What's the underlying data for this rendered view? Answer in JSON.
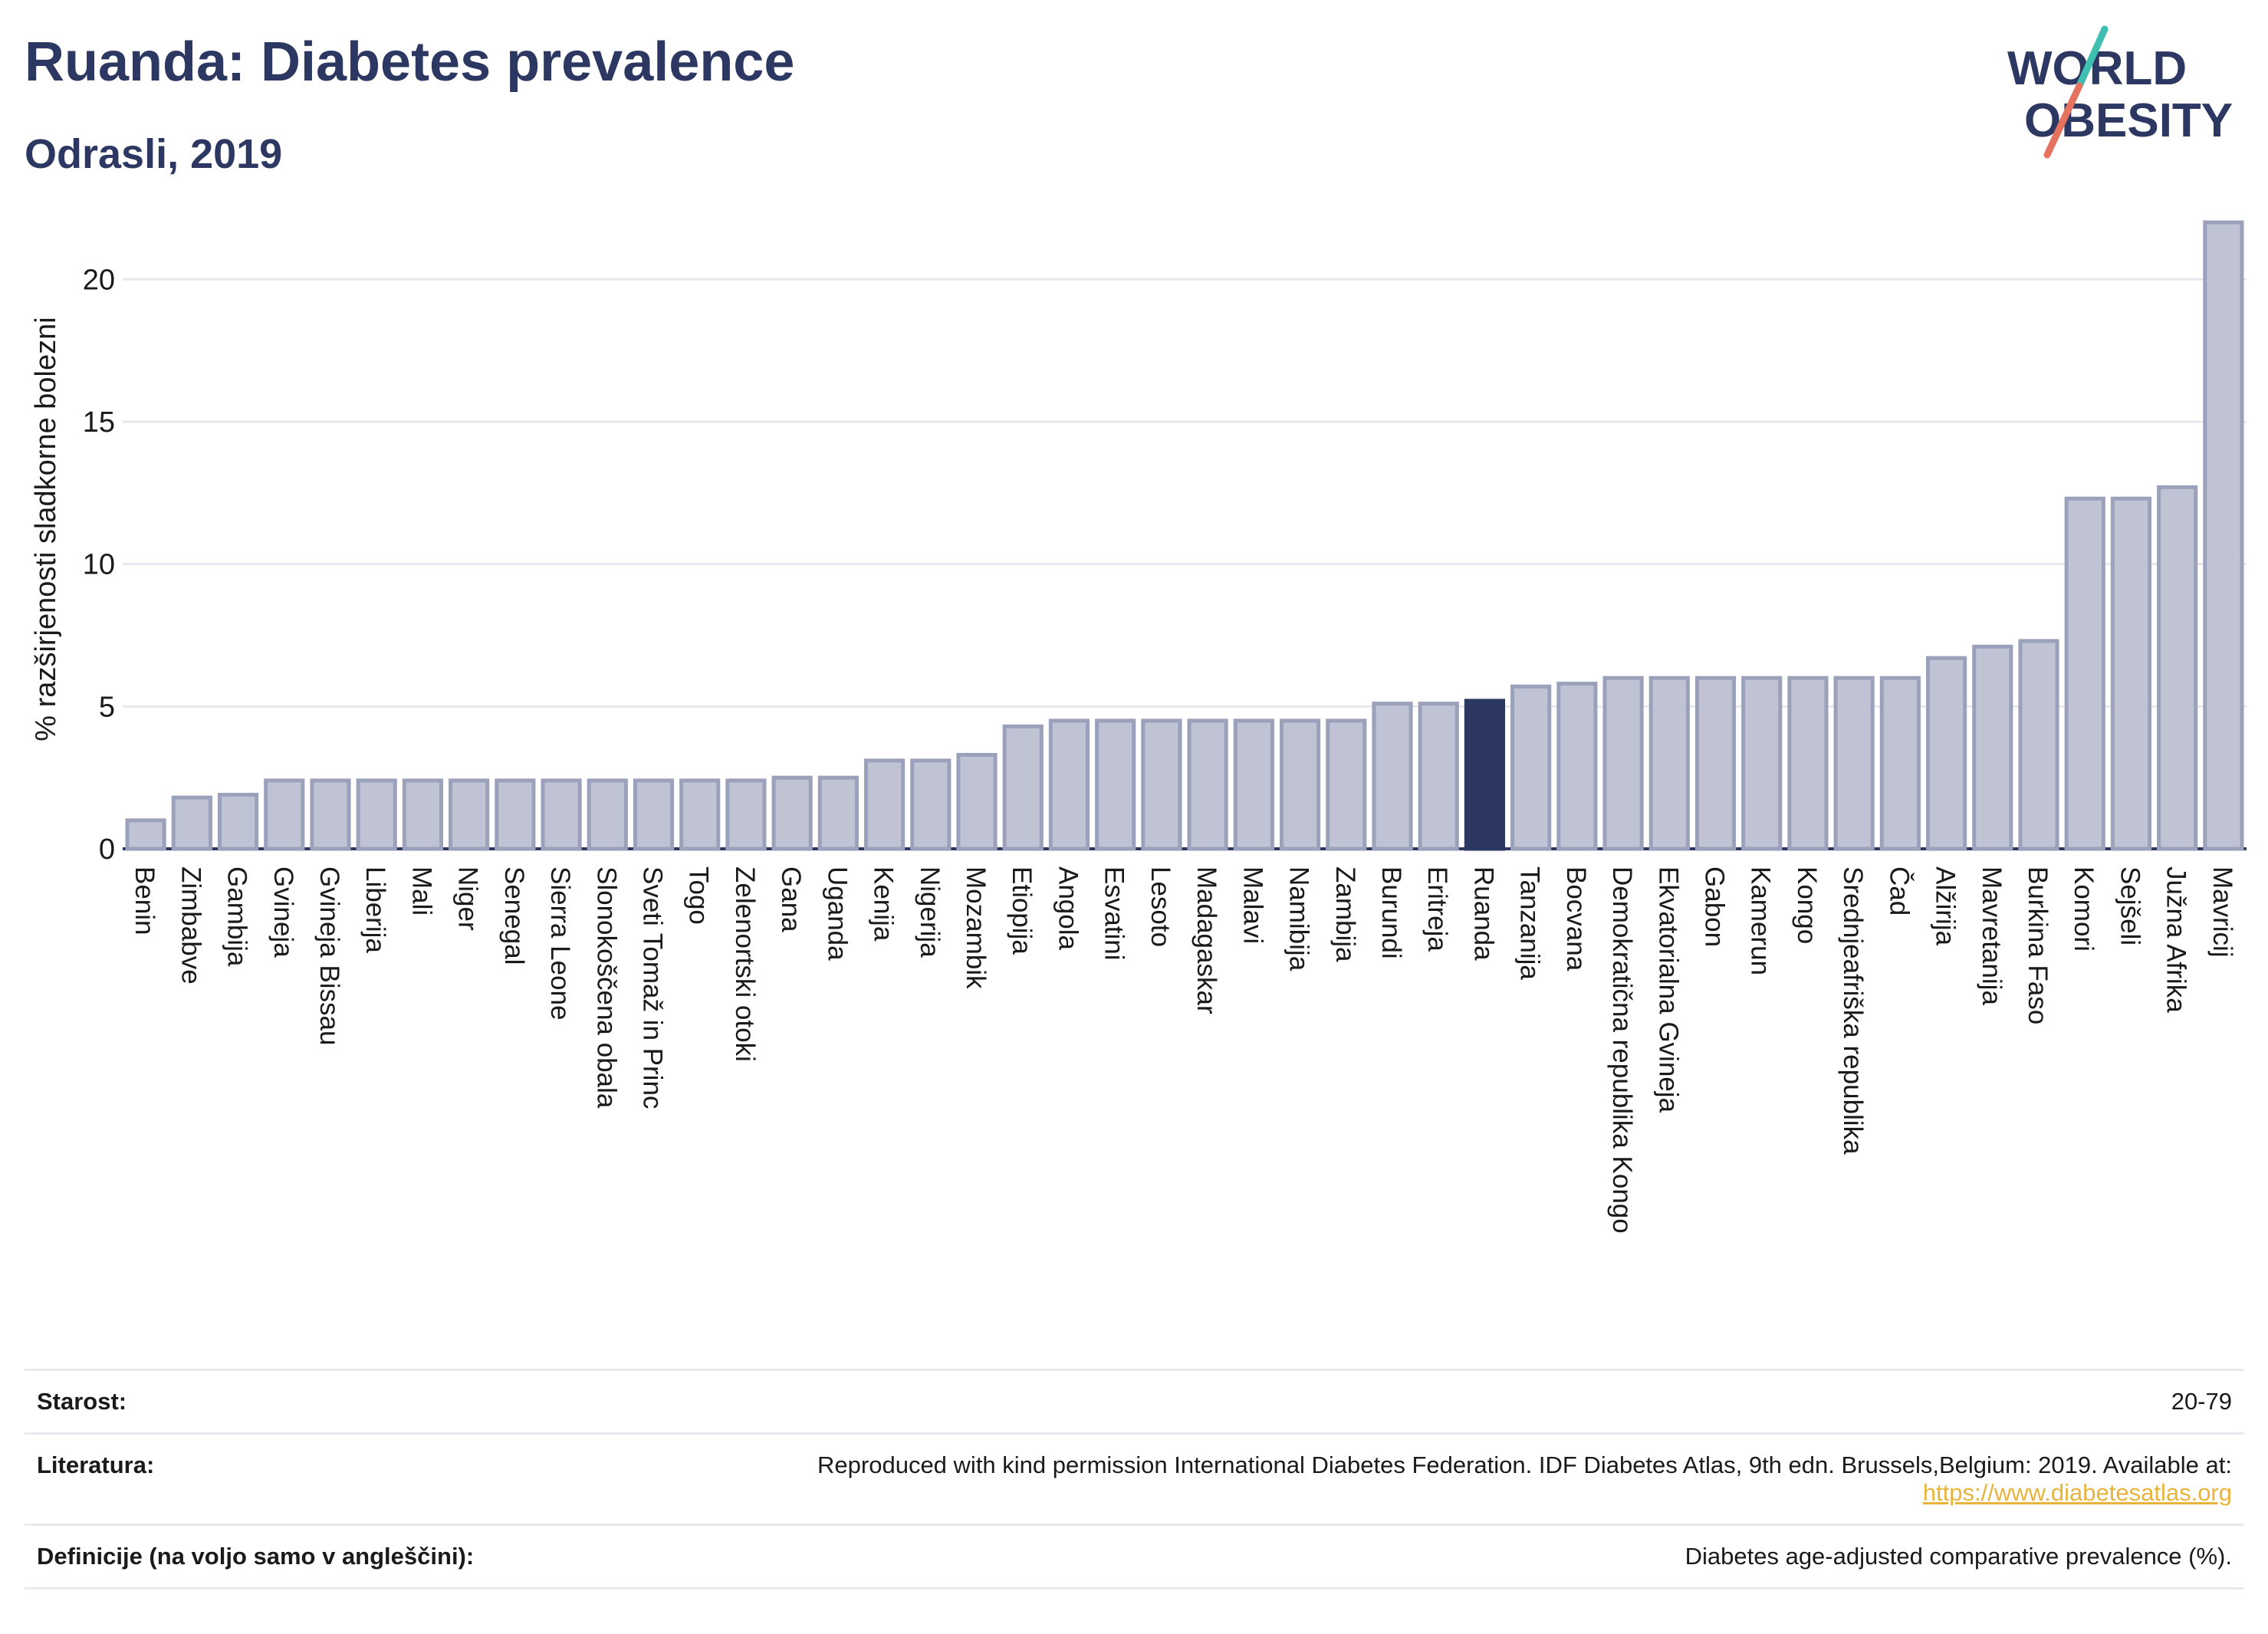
{
  "header": {
    "title": "Ruanda: Diabetes prevalence",
    "subtitle": "Odrasli, 2019"
  },
  "logo": {
    "line1": "WORLD",
    "line2": "OBESITY"
  },
  "colors": {
    "bar": "#bfc3d3",
    "bar_edge": "#9ba1ba",
    "highlight": "#2c3762",
    "title": "#2c3762",
    "link": "#e8b43c"
  },
  "chart_data": {
    "type": "bar",
    "ylabel": "% razširjenosti sladkorne bolezni",
    "ylim": [
      0,
      22
    ],
    "yticks": [
      0,
      5,
      10,
      15,
      20
    ],
    "grid": true,
    "highlight": "Ruanda",
    "categories": [
      "Benin",
      "Zimbabve",
      "Gambija",
      "Gvineja",
      "Gvineja Bissau",
      "Liberija",
      "Mali",
      "Niger",
      "Senegal",
      "Sierra Leone",
      "Slonokoščena obala",
      "Sveti Tomaž in Princ",
      "Togo",
      "Zelenortski otoki",
      "Gana",
      "Uganda",
      "Kenija",
      "Nigerija",
      "Mozambik",
      "Etiopija",
      "Angola",
      "Esvatini",
      "Lesoto",
      "Madagaskar",
      "Malavi",
      "Namibija",
      "Zambija",
      "Burundi",
      "Eritreja",
      "Ruanda",
      "Tanzanija",
      "Bocvana",
      "Demokratična republika Kongo",
      "Ekvatorialna Gvineja",
      "Gabon",
      "Kamerun",
      "Kongo",
      "Srednjeafriška republika",
      "Čad",
      "Alžirija",
      "Mavretanija",
      "Burkina Faso",
      "Komori",
      "Sejšeli",
      "Južna Afrika",
      "Mavricij"
    ],
    "values": [
      1.0,
      1.8,
      1.9,
      2.4,
      2.4,
      2.4,
      2.4,
      2.4,
      2.4,
      2.4,
      2.4,
      2.4,
      2.4,
      2.4,
      2.5,
      2.5,
      3.1,
      3.1,
      3.3,
      4.3,
      4.5,
      4.5,
      4.5,
      4.5,
      4.5,
      4.5,
      4.5,
      5.1,
      5.1,
      5.2,
      5.7,
      5.8,
      6.0,
      6.0,
      6.0,
      6.0,
      6.0,
      6.0,
      6.0,
      6.7,
      7.1,
      7.3,
      12.3,
      12.3,
      12.7,
      22.0
    ]
  },
  "info": {
    "age_label": "Starost:",
    "age_value": "20-79",
    "ref_label": "Literatura:",
    "ref_text": "Reproduced with kind permission International Diabetes Federation. IDF Diabetes Atlas, 9th edn. Brussels,Belgium: 2019. Available at:",
    "ref_link": "https://www.diabetesatlas.org",
    "def_label": "Definicije (na voljo samo v angleščini):",
    "def_text": "Diabetes age-adjusted comparative prevalence (%)."
  }
}
